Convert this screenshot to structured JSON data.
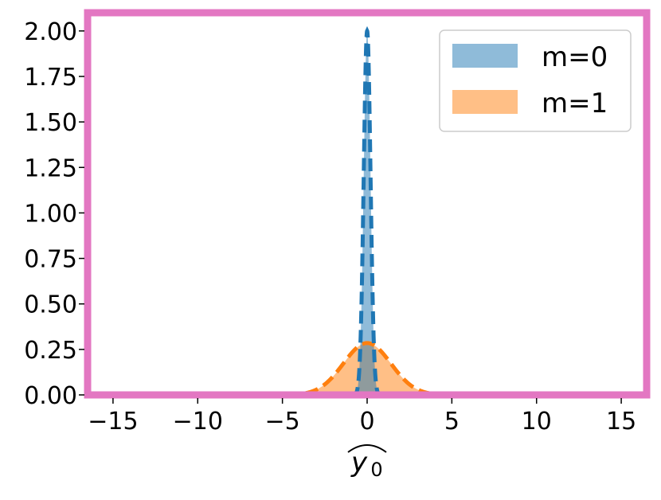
{
  "chart_data": {
    "type": "area",
    "title": "",
    "xlabel": "y0",
    "xlabel_display": {
      "base": "y",
      "subscript": "0",
      "accent": "wide-hat"
    },
    "ylabel": "",
    "xlim": [
      -16.5,
      16.5
    ],
    "ylim": [
      0,
      2.1
    ],
    "xticks": [
      -15,
      -10,
      -5,
      0,
      5,
      10,
      15
    ],
    "xtick_labels": [
      "−15",
      "−10",
      "−5",
      "0",
      "5",
      "10",
      "15"
    ],
    "yticks": [
      0,
      0.25,
      0.5,
      0.75,
      1.0,
      1.25,
      1.5,
      1.75,
      2.0
    ],
    "ytick_labels": [
      "0.00",
      "0.25",
      "0.50",
      "0.75",
      "1.00",
      "1.25",
      "1.50",
      "1.75",
      "2.00"
    ],
    "grid": false,
    "legend_position": "top-right",
    "frame_color": "#e377c2",
    "series": [
      {
        "name": "m=0",
        "fill_color": "#1f77b4",
        "fill_opacity": 0.5,
        "line_color": "#1f77b4",
        "line_style": "dashed",
        "distribution": "normal",
        "mean": 0,
        "std": 0.2,
        "peak": 2.0
      },
      {
        "name": "m=1",
        "fill_color": "#ff7f0e",
        "fill_opacity": 0.5,
        "line_color": "#ff7f0e",
        "line_style": "dashed",
        "distribution": "normal",
        "mean": 0,
        "std": 1.4,
        "peak": 0.285
      }
    ]
  }
}
